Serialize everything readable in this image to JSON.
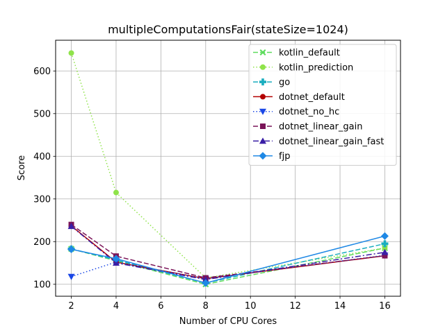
{
  "chart_data": {
    "type": "line",
    "title": "multipleComputationsFair(stateSize=1024)",
    "xlabel": "Number of CPU Cores",
    "ylabel": "Score",
    "x": [
      2,
      4,
      8,
      16
    ],
    "xlim": [
      1.3,
      16.7
    ],
    "ylim": [
      72,
      672
    ],
    "xticks": [
      2,
      4,
      6,
      8,
      10,
      12,
      14,
      16
    ],
    "yticks": [
      100,
      200,
      300,
      400,
      500,
      600
    ],
    "grid": true,
    "legend_position": "upper right",
    "series": [
      {
        "name": "kotlin_default",
        "values": [
          183,
          155,
          100,
          185
        ],
        "color": "#5cdb5c",
        "dash": "dashed",
        "marker": "x-filled"
      },
      {
        "name": "kotlin_prediction",
        "values": [
          642,
          315,
          115,
          185
        ],
        "color": "#8fe34a",
        "dash": "dotted",
        "marker": "circle"
      },
      {
        "name": "go",
        "values": [
          183,
          157,
          103,
          195
        ],
        "color": "#1aadbf",
        "dash": "dashed",
        "marker": "plus-filled"
      },
      {
        "name": "dotnet_default",
        "values": [
          237,
          152,
          113,
          167
        ],
        "color": "#b30000",
        "dash": "solid",
        "marker": "circle"
      },
      {
        "name": "dotnet_no_hc",
        "values": [
          118,
          152,
          113,
          168
        ],
        "color": "#1a47e6",
        "dash": "dotted",
        "marker": "triangle-down"
      },
      {
        "name": "dotnet_linear_gain",
        "values": [
          240,
          166,
          115,
          167
        ],
        "color": "#7a1458",
        "dash": "dashed",
        "marker": "square"
      },
      {
        "name": "dotnet_linear_gain_fast",
        "values": [
          236,
          150,
          111,
          175
        ],
        "color": "#3a1fa6",
        "dash": "dashdot",
        "marker": "triangle-up"
      },
      {
        "name": "fjp",
        "values": [
          182,
          160,
          103,
          213
        ],
        "color": "#1e88e5",
        "dash": "solid",
        "marker": "diamond"
      }
    ]
  }
}
